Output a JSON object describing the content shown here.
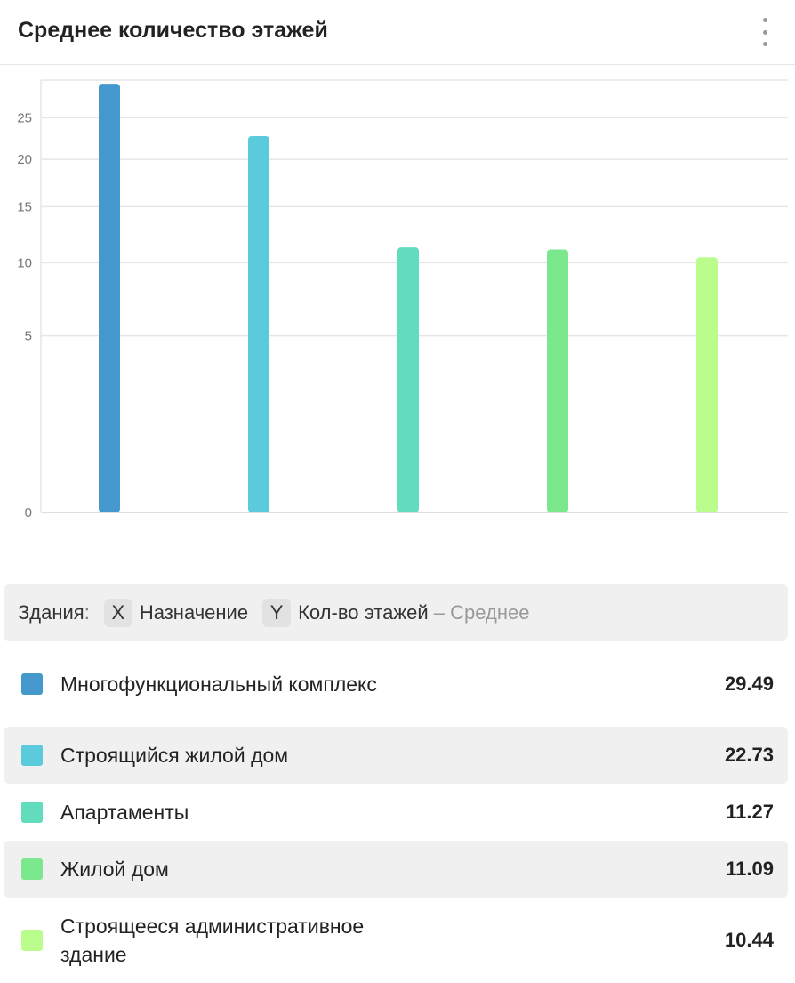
{
  "header": {
    "title": "Среднее количество этажей"
  },
  "axes": {
    "dataset": "Здания",
    "x_badge": "X",
    "x_label": "Назначение",
    "y_badge": "Y",
    "y_label": "Кол-во этажей",
    "y_agg": "– Среднее"
  },
  "legend": [
    {
      "label": "Многофункциональный комплекс",
      "value": "29.49",
      "color": "#4498cd"
    },
    {
      "label": "Строящийся жилой дом",
      "value": "22.73",
      "color": "#5bcadb"
    },
    {
      "label": "Апартаменты",
      "value": "11.27",
      "color": "#62dcbd"
    },
    {
      "label": "Жилой дом",
      "value": "11.09",
      "color": "#7be88e"
    },
    {
      "label": "Строящееся административное здание",
      "value": "10.44",
      "color": "#bbfd8d"
    }
  ],
  "chart_data": {
    "type": "bar",
    "categories": [
      "Многофункциональный комплекс",
      "Строящийся жилой дом",
      "Апартаменты",
      "Жилой дом",
      "Строящееся административное здание"
    ],
    "values": [
      29.49,
      22.73,
      11.27,
      11.09,
      10.44
    ],
    "colors": [
      "#4498cd",
      "#5bcadb",
      "#62dcbd",
      "#7be88e",
      "#bbfd8d"
    ],
    "yticks": [
      0,
      5,
      10,
      15,
      20,
      25
    ],
    "yscale": "sqrt",
    "ylim": [
      0,
      30
    ],
    "grid": true
  }
}
